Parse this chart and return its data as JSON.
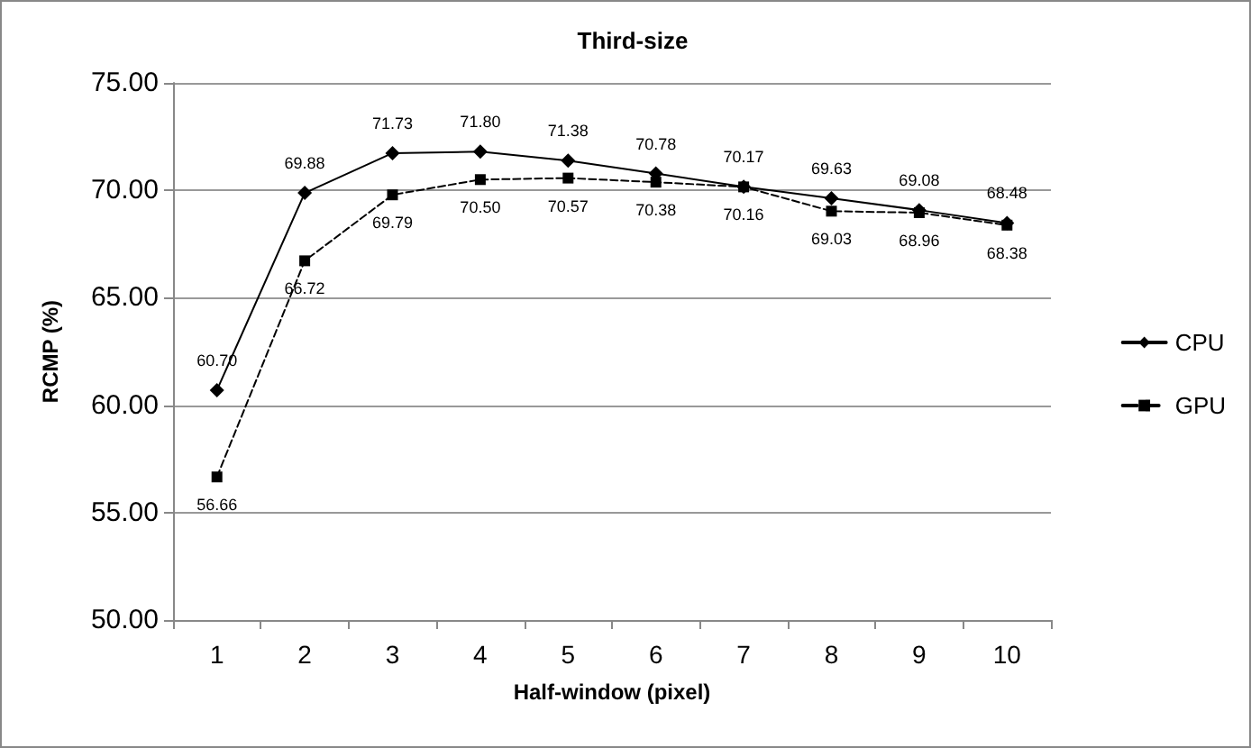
{
  "chart_data": {
    "type": "line",
    "title": "Third-size",
    "xlabel": "Half-window (pixel)",
    "ylabel": "RCMP (%)",
    "categories": [
      "1",
      "2",
      "3",
      "4",
      "5",
      "6",
      "7",
      "8",
      "9",
      "10"
    ],
    "series": [
      {
        "name": "CPU",
        "color": "#000000",
        "marker": "diamond",
        "line_style": "solid",
        "values": [
          60.7,
          69.88,
          71.73,
          71.8,
          71.38,
          70.78,
          70.17,
          69.63,
          69.08,
          68.48
        ],
        "value_labels": [
          "60.70",
          "69.88",
          "71.73",
          "71.80",
          "71.38",
          "70.78",
          "70.17",
          "69.63",
          "69.08",
          "68.48"
        ]
      },
      {
        "name": "GPU",
        "color": "#000000",
        "marker": "square",
        "line_style": "dashed",
        "values": [
          56.66,
          66.72,
          69.79,
          70.5,
          70.57,
          70.38,
          70.16,
          69.03,
          68.96,
          68.38
        ],
        "value_labels": [
          "56.66",
          "66.72",
          "69.79",
          "70.50",
          "70.57",
          "70.38",
          "70.16",
          "69.03",
          "68.96",
          "68.38"
        ]
      }
    ],
    "ylim": [
      50,
      75
    ],
    "yticks": [
      {
        "value": 50,
        "label": "50.00"
      },
      {
        "value": 55,
        "label": "55.00"
      },
      {
        "value": 60,
        "label": "60.00"
      },
      {
        "value": 65,
        "label": "65.00"
      },
      {
        "value": 70,
        "label": "70.00"
      },
      {
        "value": 75,
        "label": "75.00"
      }
    ],
    "grid": "y",
    "legend": "right"
  }
}
